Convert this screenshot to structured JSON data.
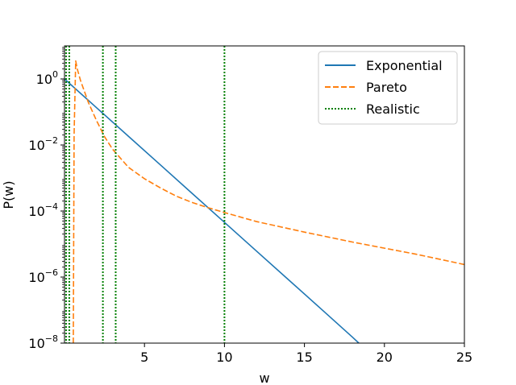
{
  "chart_data": {
    "type": "line",
    "title": "",
    "xlabel": "w",
    "ylabel": "P(w)",
    "xlim": [
      0,
      25
    ],
    "ylim": [
      1e-08,
      10
    ],
    "yscale": "log",
    "grid": false,
    "legend_position": "top-right",
    "x_ticks": [
      5,
      10,
      15,
      20,
      25
    ],
    "x_tick_labels": [
      "5",
      "10",
      "15",
      "20",
      "25"
    ],
    "y_ticks": [
      1e-08,
      1e-06,
      0.0001,
      0.01,
      1
    ],
    "y_tick_labels": [
      {
        "base": "10",
        "exp": "−8"
      },
      {
        "base": "10",
        "exp": "−6"
      },
      {
        "base": "10",
        "exp": "−4"
      },
      {
        "base": "10",
        "exp": "−2"
      },
      {
        "base": "10",
        "exp": "0"
      }
    ],
    "series": [
      {
        "name": "Exponential",
        "color": "#1f77b4",
        "style": "solid",
        "x": [
          0,
          2,
          4,
          6,
          8,
          10,
          12,
          14,
          16,
          18,
          18.4
        ],
        "y": [
          1,
          0.135,
          0.0183,
          0.00248,
          0.000335,
          4.54e-05,
          6.14e-06,
          8.32e-07,
          1.13e-07,
          1.52e-08,
          1e-08
        ]
      },
      {
        "name": "Pareto",
        "color": "#ff7f0e",
        "style": "dashed",
        "x": [
          0.55,
          0.6,
          0.7,
          0.8,
          1.0,
          1.5,
          2.0,
          2.5,
          3.0,
          4.0,
          5.0,
          6.0,
          7.0,
          8.0,
          9.0,
          10.0,
          12.0,
          15.0,
          18.0,
          20.0,
          22.0,
          25.0
        ],
        "y": [
          1e-08,
          0.02,
          3.5,
          2.0,
          0.9,
          0.19,
          0.055,
          0.018,
          0.0075,
          0.0021,
          0.00095,
          0.0005,
          0.00028,
          0.00018,
          0.000125,
          9e-05,
          4.8e-05,
          2.3e-05,
          1.15e-05,
          7.5e-06,
          4.9e-06,
          2.4e-06
        ]
      },
      {
        "name": "Realistic",
        "color": "#008000",
        "style": "dotted",
        "vlines": [
          0.1,
          0.3,
          2.4,
          3.2,
          10.0
        ]
      }
    ]
  }
}
